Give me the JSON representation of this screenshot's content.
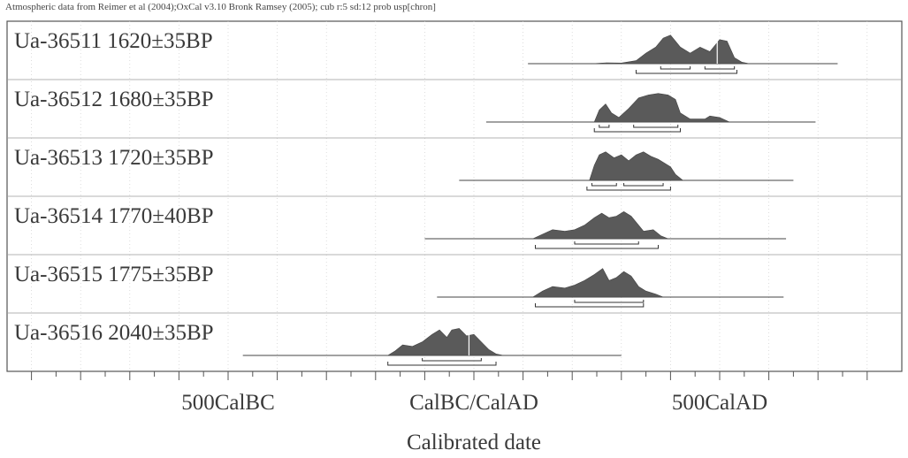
{
  "header": {
    "note": "Atmospheric data from Reimer et al (2004);OxCal v3.10 Bronk Ramsey (2005); cub r:5 sd:12 prob usp[chron]"
  },
  "chart_data": {
    "type": "area",
    "title": "",
    "xlabel": "Calibrated date",
    "ylabel": "",
    "xlim": [
      -900,
      900
    ],
    "x_ticks": [
      {
        "value": -500,
        "label": "500CalBC"
      },
      {
        "value": 0,
        "label": "CalBC/CalAD"
      },
      {
        "value": 500,
        "label": "500CalAD"
      }
    ],
    "grid": true,
    "series": [
      {
        "name": "Ua-36511",
        "label": "Ua-36511  1620±35BP",
        "line_range": [
          110,
          740
        ],
        "curve": [
          [
            240,
            0
          ],
          [
            270,
            0.03
          ],
          [
            300,
            0.02
          ],
          [
            330,
            0.1
          ],
          [
            350,
            0.35
          ],
          [
            370,
            0.55
          ],
          [
            385,
            0.85
          ],
          [
            400,
            0.95
          ],
          [
            420,
            0.55
          ],
          [
            440,
            0.35
          ],
          [
            460,
            0.55
          ],
          [
            480,
            0.4
          ],
          [
            500,
            0.8
          ],
          [
            515,
            0.75
          ],
          [
            530,
            0.2
          ],
          [
            545,
            0.05
          ],
          [
            560,
            0
          ]
        ],
        "hpd_68": [
          [
            380,
            440
          ],
          [
            470,
            530
          ]
        ],
        "hpd_95": [
          [
            330,
            535
          ]
        ],
        "marker": 495
      },
      {
        "name": "Ua-36512",
        "label": "Ua-36512  1680±35BP",
        "line_range": [
          25,
          695
        ],
        "curve": [
          [
            245,
            0
          ],
          [
            255,
            0.4
          ],
          [
            268,
            0.6
          ],
          [
            280,
            0.3
          ],
          [
            295,
            0.15
          ],
          [
            315,
            0.45
          ],
          [
            335,
            0.8
          ],
          [
            355,
            0.9
          ],
          [
            375,
            0.95
          ],
          [
            395,
            0.9
          ],
          [
            410,
            0.75
          ],
          [
            420,
            0.3
          ],
          [
            440,
            0.1
          ],
          [
            470,
            0.1
          ],
          [
            480,
            0.2
          ],
          [
            500,
            0.15
          ],
          [
            520,
            0
          ]
        ],
        "hpd_68": [
          [
            255,
            275
          ],
          [
            325,
            415
          ]
        ],
        "hpd_95": [
          [
            245,
            420
          ]
        ],
        "marker": null
      },
      {
        "name": "Ua-36513",
        "label": "Ua-36513  1720±35BP",
        "line_range": [
          -30,
          650
        ],
        "curve": [
          [
            235,
            0
          ],
          [
            245,
            0.5
          ],
          [
            255,
            0.85
          ],
          [
            268,
            0.95
          ],
          [
            285,
            0.75
          ],
          [
            300,
            0.85
          ],
          [
            315,
            0.65
          ],
          [
            330,
            0.85
          ],
          [
            345,
            0.95
          ],
          [
            360,
            0.8
          ],
          [
            375,
            0.7
          ],
          [
            390,
            0.55
          ],
          [
            400,
            0.45
          ],
          [
            410,
            0.2
          ],
          [
            425,
            0
          ]
        ],
        "hpd_68": [
          [
            240,
            290
          ],
          [
            305,
            385
          ]
        ],
        "hpd_95": [
          [
            230,
            400
          ]
        ],
        "marker": null
      },
      {
        "name": "Ua-36514",
        "label": "Ua-36514  1770±40BP",
        "line_range": [
          -100,
          635
        ],
        "curve": [
          [
            120,
            0
          ],
          [
            140,
            0.15
          ],
          [
            160,
            0.3
          ],
          [
            185,
            0.25
          ],
          [
            205,
            0.3
          ],
          [
            225,
            0.45
          ],
          [
            245,
            0.7
          ],
          [
            260,
            0.85
          ],
          [
            275,
            0.7
          ],
          [
            290,
            0.75
          ],
          [
            305,
            0.9
          ],
          [
            320,
            0.75
          ],
          [
            335,
            0.45
          ],
          [
            345,
            0.25
          ],
          [
            365,
            0.3
          ],
          [
            380,
            0.1
          ],
          [
            395,
            0
          ]
        ],
        "hpd_68": [
          [
            205,
            335
          ]
        ],
        "hpd_95": [
          [
            125,
            375
          ]
        ],
        "marker": null
      },
      {
        "name": "Ua-36515",
        "label": "Ua-36515  1775±35BP",
        "line_range": [
          -75,
          630
        ],
        "curve": [
          [
            120,
            0
          ],
          [
            140,
            0.2
          ],
          [
            160,
            0.35
          ],
          [
            185,
            0.3
          ],
          [
            205,
            0.4
          ],
          [
            225,
            0.55
          ],
          [
            245,
            0.75
          ],
          [
            262,
            0.95
          ],
          [
            275,
            0.55
          ],
          [
            290,
            0.65
          ],
          [
            305,
            0.85
          ],
          [
            320,
            0.7
          ],
          [
            335,
            0.35
          ],
          [
            350,
            0.2
          ],
          [
            370,
            0.1
          ],
          [
            385,
            0
          ]
        ],
        "hpd_68": [
          [
            205,
            345
          ]
        ],
        "hpd_95": [
          [
            125,
            345
          ]
        ],
        "marker": null
      },
      {
        "name": "Ua-36516",
        "label": "Ua-36516  2040±35BP",
        "line_range": [
          -470,
          300
        ],
        "curve": [
          [
            -175,
            0
          ],
          [
            -160,
            0.15
          ],
          [
            -145,
            0.35
          ],
          [
            -125,
            0.3
          ],
          [
            -105,
            0.45
          ],
          [
            -85,
            0.7
          ],
          [
            -70,
            0.85
          ],
          [
            -55,
            0.6
          ],
          [
            -45,
            0.85
          ],
          [
            -30,
            0.9
          ],
          [
            -15,
            0.65
          ],
          [
            0,
            0.7
          ],
          [
            15,
            0.45
          ],
          [
            30,
            0.2
          ],
          [
            45,
            0.05
          ],
          [
            60,
            0
          ]
        ],
        "hpd_68": [
          [
            -105,
            15
          ]
        ],
        "hpd_95": [
          [
            -175,
            45
          ]
        ],
        "marker": -10
      }
    ]
  }
}
